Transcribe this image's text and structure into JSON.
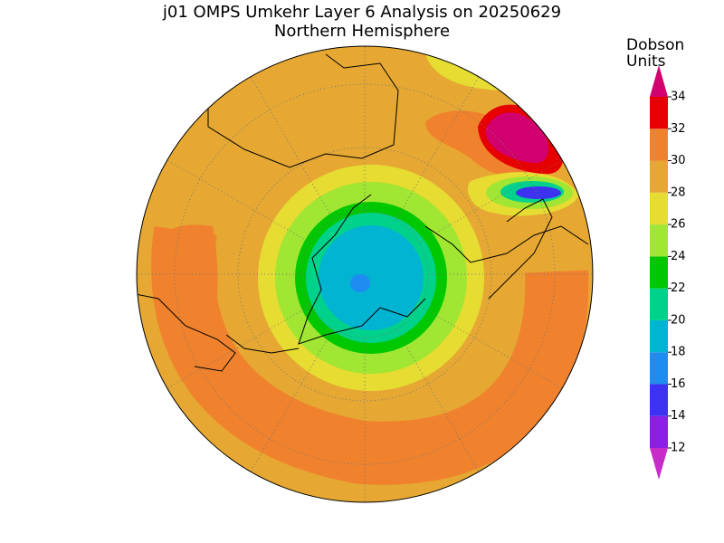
{
  "title": "j01 OMPS Umkehr Layer 6 Analysis on 20250629",
  "subtitle": "Northern Hemisphere",
  "colorbar": {
    "label_lines": [
      "Dobson",
      "Units"
    ],
    "ticks": [
      12,
      14,
      16,
      18,
      20,
      22,
      24,
      26,
      28,
      30,
      32,
      34
    ],
    "colors": [
      "#c82cc8",
      "#8c1ee6",
      "#3c32f0",
      "#1e8cf0",
      "#00b4d2",
      "#00d28c",
      "#00c800",
      "#a0e632",
      "#e6dc32",
      "#e6a832",
      "#f0822d",
      "#e60000",
      "#d2006e"
    ]
  }
}
